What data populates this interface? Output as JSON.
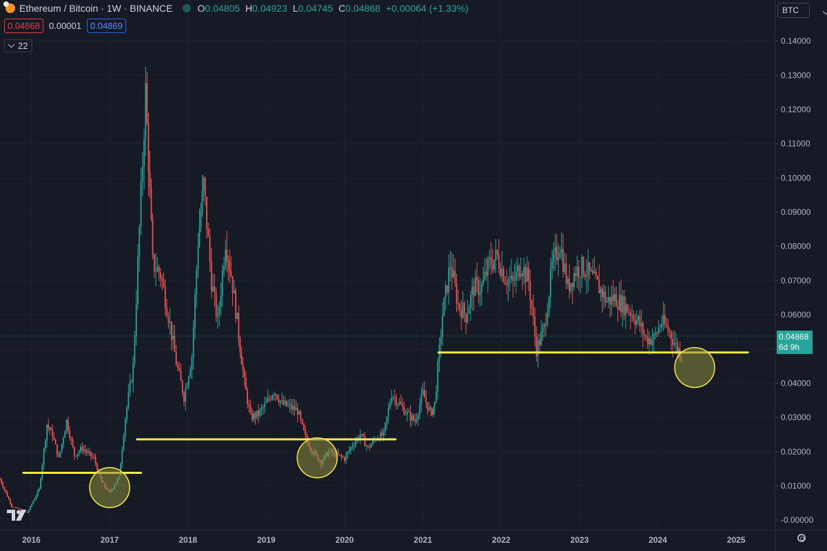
{
  "header": {
    "symbol": "Ethereum / Bitcoin · 1W · BINANCE",
    "o_label": "O",
    "o": "0.04805",
    "h_label": "H",
    "h": "0.04923",
    "l_label": "L",
    "l": "0.04745",
    "c_label": "C",
    "c": "0.04868",
    "change": "+0.00064 (+1.33%)",
    "bid": "0.04868",
    "spread": "0.00001",
    "ask": "0.04869",
    "indicator_count": "22"
  },
  "currency": "BTC",
  "last_price": {
    "value": "0.04868",
    "countdown": "6d 9h"
  },
  "colors": {
    "up": "#26a69a",
    "down": "#ef5350",
    "support": "#f5e94e",
    "circle": "#8c8c3c",
    "background": "#161a25"
  },
  "icons": [
    "chart-logo-icon",
    "market-status-icon",
    "chevron-down-icon",
    "tradingview-logo-icon",
    "settings-gear-icon"
  ],
  "chart_data": {
    "type": "candlestick",
    "x_axis": [
      "2016",
      "2017",
      "2018",
      "2019",
      "2020",
      "2021",
      "2022",
      "2023",
      "2024",
      "2025"
    ],
    "y_axis": [
      "0.14000",
      "0.13000",
      "0.12000",
      "0.11000",
      "0.10000",
      "0.09000",
      "0.08000",
      "0.07000",
      "0.06000",
      "0.05000",
      "0.04000",
      "0.03000",
      "0.02000",
      "0.01000",
      "-0.00000"
    ],
    "ylim": [
      -0.003,
      0.148
    ],
    "xlim": [
      2015.6,
      2025.5
    ],
    "series": [
      {
        "values": [
          [
            2015.6,
            0.012
          ],
          [
            2015.75,
            0.004
          ],
          [
            2015.95,
            0.0022
          ],
          [
            2016.1,
            0.009
          ],
          [
            2016.2,
            0.028
          ],
          [
            2016.27,
            0.025
          ],
          [
            2016.35,
            0.018
          ],
          [
            2016.45,
            0.029
          ],
          [
            2016.55,
            0.019
          ],
          [
            2016.65,
            0.021
          ],
          [
            2016.8,
            0.018
          ],
          [
            2016.9,
            0.011
          ],
          [
            2017.0,
            0.008
          ],
          [
            2017.12,
            0.0125
          ],
          [
            2017.2,
            0.03
          ],
          [
            2017.3,
            0.045
          ],
          [
            2017.4,
            0.095
          ],
          [
            2017.46,
            0.125
          ],
          [
            2017.55,
            0.075
          ],
          [
            2017.65,
            0.072
          ],
          [
            2017.75,
            0.06
          ],
          [
            2017.85,
            0.046
          ],
          [
            2017.95,
            0.036
          ],
          [
            2018.05,
            0.048
          ],
          [
            2018.13,
            0.082
          ],
          [
            2018.2,
            0.098
          ],
          [
            2018.3,
            0.07
          ],
          [
            2018.38,
            0.058
          ],
          [
            2018.48,
            0.082
          ],
          [
            2018.55,
            0.072
          ],
          [
            2018.63,
            0.058
          ],
          [
            2018.72,
            0.04
          ],
          [
            2018.8,
            0.03
          ],
          [
            2018.9,
            0.031
          ],
          [
            2019.0,
            0.034
          ],
          [
            2019.1,
            0.038
          ],
          [
            2019.2,
            0.034
          ],
          [
            2019.3,
            0.033
          ],
          [
            2019.4,
            0.032
          ],
          [
            2019.5,
            0.024
          ],
          [
            2019.6,
            0.02
          ],
          [
            2019.7,
            0.017
          ],
          [
            2019.8,
            0.02
          ],
          [
            2019.9,
            0.019
          ],
          [
            2020.0,
            0.018
          ],
          [
            2020.1,
            0.022
          ],
          [
            2020.2,
            0.025
          ],
          [
            2020.3,
            0.021
          ],
          [
            2020.4,
            0.024
          ],
          [
            2020.5,
            0.025
          ],
          [
            2020.6,
            0.037
          ],
          [
            2020.7,
            0.034
          ],
          [
            2020.8,
            0.031
          ],
          [
            2020.9,
            0.029
          ],
          [
            2021.0,
            0.037
          ],
          [
            2021.1,
            0.031
          ],
          [
            2021.15,
            0.034
          ],
          [
            2021.25,
            0.06
          ],
          [
            2021.35,
            0.075
          ],
          [
            2021.45,
            0.063
          ],
          [
            2021.55,
            0.06
          ],
          [
            2021.65,
            0.068
          ],
          [
            2021.75,
            0.068
          ],
          [
            2021.85,
            0.075
          ],
          [
            2021.95,
            0.077
          ],
          [
            2022.05,
            0.071
          ],
          [
            2022.15,
            0.069
          ],
          [
            2022.25,
            0.075
          ],
          [
            2022.35,
            0.07
          ],
          [
            2022.45,
            0.05
          ],
          [
            2022.55,
            0.056
          ],
          [
            2022.65,
            0.074
          ],
          [
            2022.75,
            0.081
          ],
          [
            2022.85,
            0.068
          ],
          [
            2022.95,
            0.073
          ],
          [
            2023.05,
            0.074
          ],
          [
            2023.15,
            0.071
          ],
          [
            2023.25,
            0.068
          ],
          [
            2023.35,
            0.064
          ],
          [
            2023.45,
            0.065
          ],
          [
            2023.55,
            0.063
          ],
          [
            2023.65,
            0.061
          ],
          [
            2023.75,
            0.058
          ],
          [
            2023.85,
            0.053
          ],
          [
            2023.95,
            0.053
          ],
          [
            2024.05,
            0.058
          ],
          [
            2024.15,
            0.055
          ],
          [
            2024.25,
            0.05
          ],
          [
            2024.3,
            0.0487
          ]
        ]
      }
    ],
    "support_levels": [
      {
        "value": 0.0138,
        "x_from": 2015.9,
        "x_to": 2017.4
      },
      {
        "value": 0.0236,
        "x_from": 2017.35,
        "x_to": 2020.65
      },
      {
        "value": 0.049,
        "x_from": 2021.2,
        "x_to": 2025.15
      }
    ],
    "highlight_circles": [
      {
        "x": 2017.0,
        "y": 0.0095
      },
      {
        "x": 2019.65,
        "y": 0.0182
      },
      {
        "x": 2024.47,
        "y": 0.0446
      }
    ]
  }
}
